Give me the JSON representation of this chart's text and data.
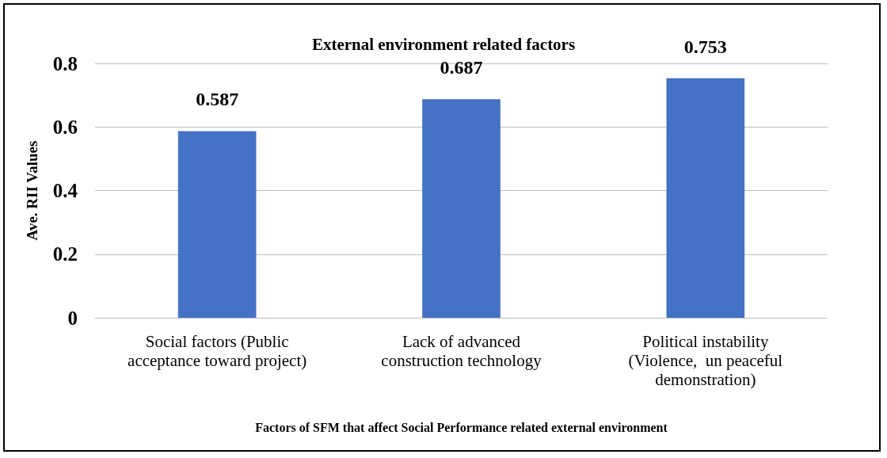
{
  "chart_data": {
    "type": "bar",
    "title": "External environment related factors",
    "xlabel": "Factors of SFM that affect Social Performance related external environment",
    "ylabel": "Ave. RII Values",
    "categories": [
      "Social factors (Public\nacceptance toward project)",
      "Lack of advanced\nconstruction technology",
      "Political instability\n(Violence,  un peaceful\ndemonstration)"
    ],
    "values": [
      0.587,
      0.687,
      0.753
    ],
    "color": "#4472c4",
    "ylim": [
      0,
      0.8
    ],
    "yticks": [
      0,
      0.2,
      0.4,
      0.6,
      0.8
    ],
    "grid": "y",
    "data_labels": true
  }
}
